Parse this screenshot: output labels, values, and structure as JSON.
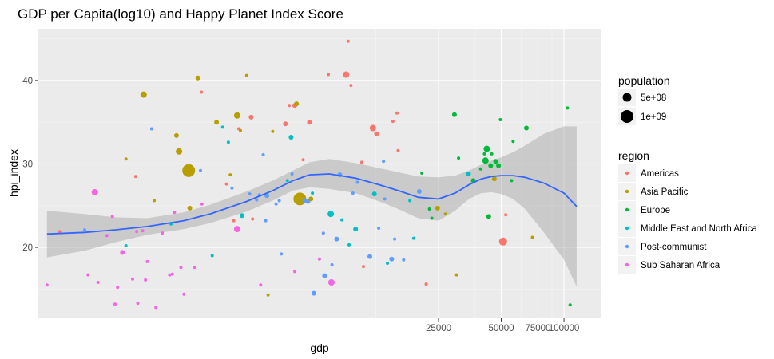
{
  "chart_data": {
    "type": "scatter",
    "title": "GDP per Capita(log10) and Happy Planet Index Score",
    "xlabel": "gdp",
    "ylabel": "hpi_index",
    "x_scale": "log10",
    "x_ticks": [
      25000,
      50000,
      75000,
      100000
    ],
    "x_tick_labels": [
      "25000",
      "50000",
      "75000",
      "100000"
    ],
    "xlim": [
      300,
      150000
    ],
    "y_ticks": [
      20,
      30,
      40
    ],
    "ylim": [
      11.5,
      46.2
    ],
    "grid": true,
    "size_legend": {
      "title": "population",
      "items": [
        {
          "label": "5e+08",
          "value": 500000000
        },
        {
          "label": "1e+09",
          "value": 1000000000
        }
      ]
    },
    "color_legend": {
      "title": "region",
      "items": [
        {
          "label": "Americas",
          "color": "#F8766D"
        },
        {
          "label": "Asia Pacific",
          "color": "#B79F00"
        },
        {
          "label": "Europe",
          "color": "#00BA38"
        },
        {
          "label": "Middle East and North Africa",
          "color": "#00BFC4"
        },
        {
          "label": "Post-communist",
          "color": "#619CFF"
        },
        {
          "label": "Sub Saharan Africa",
          "color": "#F564E3"
        }
      ]
    },
    "smooth": {
      "color": "#3366FF",
      "x": [
        330,
        500,
        700,
        1000,
        1500,
        2000,
        3000,
        4000,
        5000,
        6000,
        7500,
        10000,
        13000,
        16000,
        20000,
        25000,
        30000,
        35000,
        40000,
        45000,
        50000,
        57000,
        65000,
        80000,
        100000,
        115000
      ],
      "y": [
        21.6,
        21.8,
        22.1,
        22.5,
        23.2,
        24.0,
        25.5,
        26.8,
        28.0,
        28.7,
        28.8,
        28.3,
        27.5,
        26.8,
        26.0,
        25.8,
        26.5,
        27.5,
        28.2,
        28.5,
        28.6,
        28.6,
        28.4,
        27.7,
        26.5,
        24.9
      ],
      "lower": [
        18.8,
        19.6,
        20.6,
        21.5,
        22.2,
        22.9,
        24.3,
        25.6,
        26.8,
        27.2,
        27.0,
        26.5,
        25.5,
        24.6,
        23.5,
        23.2,
        24.4,
        25.8,
        26.5,
        26.6,
        26.4,
        25.8,
        24.6,
        21.8,
        18.5,
        15.3
      ],
      "upper": [
        24.4,
        24.0,
        23.6,
        23.5,
        24.2,
        25.1,
        26.7,
        28.0,
        29.2,
        30.2,
        30.6,
        30.1,
        29.5,
        29.0,
        28.5,
        28.4,
        28.6,
        29.2,
        29.9,
        30.4,
        30.8,
        31.4,
        32.2,
        33.6,
        34.5,
        34.5
      ]
    },
    "points": [
      {
        "x": 330,
        "y": 15.5,
        "r": 2,
        "c": "Sub Saharan Africa"
      },
      {
        "x": 380,
        "y": 21.9,
        "r": 2,
        "c": "Americas"
      },
      {
        "x": 500,
        "y": 22.1,
        "r": 2,
        "c": "Post-communist"
      },
      {
        "x": 520,
        "y": 16.7,
        "r": 2,
        "c": "Sub Saharan Africa"
      },
      {
        "x": 560,
        "y": 26.6,
        "r": 4,
        "c": "Sub Saharan Africa"
      },
      {
        "x": 580,
        "y": 15.8,
        "r": 2,
        "c": "Sub Saharan Africa"
      },
      {
        "x": 640,
        "y": 21.4,
        "r": 2,
        "c": "Sub Saharan Africa"
      },
      {
        "x": 680,
        "y": 23.7,
        "r": 2,
        "c": "Sub Saharan Africa"
      },
      {
        "x": 700,
        "y": 13.2,
        "r": 2,
        "c": "Sub Saharan Africa"
      },
      {
        "x": 720,
        "y": 15.2,
        "r": 2,
        "c": "Sub Saharan Africa"
      },
      {
        "x": 760,
        "y": 19.4,
        "r": 3,
        "c": "Sub Saharan Africa"
      },
      {
        "x": 790,
        "y": 30.6,
        "r": 2,
        "c": "Asia Pacific"
      },
      {
        "x": 790,
        "y": 20.2,
        "r": 2,
        "c": "Middle East and North Africa"
      },
      {
        "x": 850,
        "y": 16.2,
        "r": 2,
        "c": "Sub Saharan Africa"
      },
      {
        "x": 880,
        "y": 28.5,
        "r": 2,
        "c": "Americas"
      },
      {
        "x": 890,
        "y": 21.9,
        "r": 2,
        "c": "Sub Saharan Africa"
      },
      {
        "x": 900,
        "y": 13.3,
        "r": 2,
        "c": "Sub Saharan Africa"
      },
      {
        "x": 950,
        "y": 22.0,
        "r": 2,
        "c": "Sub Saharan Africa"
      },
      {
        "x": 960,
        "y": 38.3,
        "r": 4,
        "c": "Asia Pacific"
      },
      {
        "x": 980,
        "y": 16.1,
        "r": 2,
        "c": "Sub Saharan Africa"
      },
      {
        "x": 1000,
        "y": 18.3,
        "r": 2,
        "c": "Sub Saharan Africa"
      },
      {
        "x": 1050,
        "y": 34.2,
        "r": 2,
        "c": "Post-communist"
      },
      {
        "x": 1080,
        "y": 25.6,
        "r": 2,
        "c": "Asia Pacific"
      },
      {
        "x": 1100,
        "y": 12.8,
        "r": 2,
        "c": "Sub Saharan Africa"
      },
      {
        "x": 1180,
        "y": 21.7,
        "r": 2,
        "c": "Sub Saharan Africa"
      },
      {
        "x": 1280,
        "y": 16.7,
        "r": 2,
        "c": "Sub Saharan Africa"
      },
      {
        "x": 1300,
        "y": 22.8,
        "r": 2,
        "c": "Middle East and North Africa"
      },
      {
        "x": 1320,
        "y": 16.8,
        "r": 2,
        "c": "Sub Saharan Africa"
      },
      {
        "x": 1350,
        "y": 24.2,
        "r": 2,
        "c": "Sub Saharan Africa"
      },
      {
        "x": 1380,
        "y": 33.4,
        "r": 3,
        "c": "Asia Pacific"
      },
      {
        "x": 1420,
        "y": 31.5,
        "r": 4,
        "c": "Asia Pacific"
      },
      {
        "x": 1450,
        "y": 17.6,
        "r": 2,
        "c": "Sub Saharan Africa"
      },
      {
        "x": 1500,
        "y": 14.4,
        "r": 2,
        "c": "Sub Saharan Africa"
      },
      {
        "x": 1580,
        "y": 29.2,
        "r": 8,
        "c": "Asia Pacific"
      },
      {
        "x": 1600,
        "y": 24.7,
        "r": 3,
        "c": "Asia Pacific"
      },
      {
        "x": 1690,
        "y": 17.6,
        "r": 2,
        "c": "Sub Saharan Africa"
      },
      {
        "x": 1750,
        "y": 40.3,
        "r": 3,
        "c": "Asia Pacific"
      },
      {
        "x": 1800,
        "y": 29.2,
        "r": 2,
        "c": "Post-communist"
      },
      {
        "x": 1820,
        "y": 38.6,
        "r": 2,
        "c": "Americas"
      },
      {
        "x": 1830,
        "y": 25.2,
        "r": 2,
        "c": "Sub Saharan Africa"
      },
      {
        "x": 2050,
        "y": 19.0,
        "r": 2,
        "c": "Middle East and North Africa"
      },
      {
        "x": 2150,
        "y": 35.0,
        "r": 3,
        "c": "Asia Pacific"
      },
      {
        "x": 2300,
        "y": 34.4,
        "r": 2,
        "c": "Middle East and North Africa"
      },
      {
        "x": 2400,
        "y": 27.6,
        "r": 2,
        "c": "Americas"
      },
      {
        "x": 2450,
        "y": 32.6,
        "r": 2,
        "c": "Middle East and North Africa"
      },
      {
        "x": 2500,
        "y": 28.7,
        "r": 2,
        "c": "Asia Pacific"
      },
      {
        "x": 2550,
        "y": 27.1,
        "r": 2,
        "c": "Post-communist"
      },
      {
        "x": 2600,
        "y": 23.2,
        "r": 2,
        "c": "Americas"
      },
      {
        "x": 2700,
        "y": 35.8,
        "r": 4,
        "c": "Asia Pacific"
      },
      {
        "x": 2700,
        "y": 22.2,
        "r": 4,
        "c": "Sub Saharan Africa"
      },
      {
        "x": 2750,
        "y": 34.2,
        "r": 2,
        "c": "Americas"
      },
      {
        "x": 2800,
        "y": 34.0,
        "r": 2,
        "c": "Asia Pacific"
      },
      {
        "x": 2850,
        "y": 23.8,
        "r": 3,
        "c": "Middle East and North Africa"
      },
      {
        "x": 3000,
        "y": 40.6,
        "r": 2,
        "c": "Asia Pacific"
      },
      {
        "x": 3100,
        "y": 26.4,
        "r": 2,
        "c": "Post-communist"
      },
      {
        "x": 3150,
        "y": 35.6,
        "r": 3,
        "c": "Americas"
      },
      {
        "x": 3200,
        "y": 23.4,
        "r": 2,
        "c": "Americas"
      },
      {
        "x": 3350,
        "y": 25.7,
        "r": 2,
        "c": "Post-communist"
      },
      {
        "x": 3450,
        "y": 26.3,
        "r": 2,
        "c": "Post-communist"
      },
      {
        "x": 3500,
        "y": 15.5,
        "r": 2,
        "c": "Sub Saharan Africa"
      },
      {
        "x": 3600,
        "y": 31.1,
        "r": 2,
        "c": "Post-communist"
      },
      {
        "x": 3700,
        "y": 23.2,
        "r": 2,
        "c": "Post-communist"
      },
      {
        "x": 3750,
        "y": 26.2,
        "r": 3,
        "c": "Post-communist"
      },
      {
        "x": 3800,
        "y": 14.3,
        "r": 2,
        "c": "Asia Pacific"
      },
      {
        "x": 4000,
        "y": 33.9,
        "r": 2,
        "c": "Asia Pacific"
      },
      {
        "x": 4150,
        "y": 25.2,
        "r": 2,
        "c": "Post-communist"
      },
      {
        "x": 4300,
        "y": 25.6,
        "r": 2,
        "c": "Post-communist"
      },
      {
        "x": 4400,
        "y": 19.2,
        "r": 2,
        "c": "Post-communist"
      },
      {
        "x": 4600,
        "y": 34.8,
        "r": 3,
        "c": "Americas"
      },
      {
        "x": 4700,
        "y": 28.0,
        "r": 2,
        "c": "Middle East and North Africa"
      },
      {
        "x": 4800,
        "y": 37.0,
        "r": 2,
        "c": "Americas"
      },
      {
        "x": 4900,
        "y": 33.2,
        "r": 3,
        "c": "Middle East and North Africa"
      },
      {
        "x": 4950,
        "y": 28.8,
        "r": 2,
        "c": "Post-communist"
      },
      {
        "x": 5100,
        "y": 37.0,
        "r": 3,
        "c": "Americas"
      },
      {
        "x": 5100,
        "y": 17.1,
        "r": 2,
        "c": "Sub Saharan Africa"
      },
      {
        "x": 5200,
        "y": 37.2,
        "r": 3,
        "c": "Asia Pacific"
      },
      {
        "x": 5400,
        "y": 25.8,
        "r": 8,
        "c": "Asia Pacific"
      },
      {
        "x": 5600,
        "y": 30.5,
        "r": 2,
        "c": "Americas"
      },
      {
        "x": 5700,
        "y": 25.6,
        "r": 3,
        "c": "Post-communist"
      },
      {
        "x": 5900,
        "y": 25.5,
        "r": 3,
        "c": "Post-communist"
      },
      {
        "x": 6000,
        "y": 35.0,
        "r": 3,
        "c": "Americas"
      },
      {
        "x": 6100,
        "y": 25.8,
        "r": 3,
        "c": "Asia Pacific"
      },
      {
        "x": 6200,
        "y": 26.5,
        "r": 2,
        "c": "Middle East and North Africa"
      },
      {
        "x": 6300,
        "y": 14.5,
        "r": 3,
        "c": "Post-communist"
      },
      {
        "x": 6700,
        "y": 18.6,
        "r": 2,
        "c": "Sub Saharan Africa"
      },
      {
        "x": 7000,
        "y": 21.7,
        "r": 2,
        "c": "Post-communist"
      },
      {
        "x": 7100,
        "y": 16.6,
        "r": 3,
        "c": "Post-communist"
      },
      {
        "x": 7400,
        "y": 40.7,
        "r": 2,
        "c": "Americas"
      },
      {
        "x": 7600,
        "y": 24.0,
        "r": 4,
        "c": "Middle East and North Africa"
      },
      {
        "x": 7650,
        "y": 15.8,
        "r": 4,
        "c": "Sub Saharan Africa"
      },
      {
        "x": 7700,
        "y": 17.9,
        "r": 2,
        "c": "Post-communist"
      },
      {
        "x": 8100,
        "y": 21.0,
        "r": 3,
        "c": "Post-communist"
      },
      {
        "x": 8400,
        "y": 28.7,
        "r": 3,
        "c": "Post-communist"
      },
      {
        "x": 8600,
        "y": 23.3,
        "r": 2,
        "c": "Middle East and North Africa"
      },
      {
        "x": 9000,
        "y": 40.7,
        "r": 4,
        "c": "Americas"
      },
      {
        "x": 9200,
        "y": 44.7,
        "r": 2,
        "c": "Americas"
      },
      {
        "x": 9300,
        "y": 20.3,
        "r": 2,
        "c": "Middle East and North Africa"
      },
      {
        "x": 9500,
        "y": 39.4,
        "r": 2,
        "c": "Americas"
      },
      {
        "x": 9700,
        "y": 26.5,
        "r": 2,
        "c": "Post-communist"
      },
      {
        "x": 10000,
        "y": 22.2,
        "r": 3,
        "c": "Middle East and North Africa"
      },
      {
        "x": 10200,
        "y": 27.8,
        "r": 2,
        "c": "Post-communist"
      },
      {
        "x": 10700,
        "y": 30.2,
        "r": 2,
        "c": "Americas"
      },
      {
        "x": 10900,
        "y": 17.7,
        "r": 2,
        "c": "Americas"
      },
      {
        "x": 11700,
        "y": 18.9,
        "r": 3,
        "c": "Post-communist"
      },
      {
        "x": 12100,
        "y": 34.3,
        "r": 4,
        "c": "Americas"
      },
      {
        "x": 12300,
        "y": 26.4,
        "r": 3,
        "c": "Middle East and North Africa"
      },
      {
        "x": 12600,
        "y": 33.6,
        "r": 3,
        "c": "Americas"
      },
      {
        "x": 12900,
        "y": 22.3,
        "r": 2,
        "c": "Post-communist"
      },
      {
        "x": 13600,
        "y": 30.3,
        "r": 2,
        "c": "Post-communist"
      },
      {
        "x": 13800,
        "y": 25.8,
        "r": 2,
        "c": "Post-communist"
      },
      {
        "x": 14200,
        "y": 18.1,
        "r": 2,
        "c": "Middle East and North Africa"
      },
      {
        "x": 14900,
        "y": 18.6,
        "r": 3,
        "c": "Post-communist"
      },
      {
        "x": 15100,
        "y": 35.1,
        "r": 2,
        "c": "Americas"
      },
      {
        "x": 15400,
        "y": 21.0,
        "r": 2,
        "c": "Post-communist"
      },
      {
        "x": 15800,
        "y": 36.1,
        "r": 2,
        "c": "Americas"
      },
      {
        "x": 16000,
        "y": 31.6,
        "r": 2,
        "c": "Americas"
      },
      {
        "x": 17000,
        "y": 18.5,
        "r": 2,
        "c": "Post-communist"
      },
      {
        "x": 18200,
        "y": 25.6,
        "r": 2,
        "c": "Middle East and North Africa"
      },
      {
        "x": 19000,
        "y": 21.1,
        "r": 2,
        "c": "Middle East and North Africa"
      },
      {
        "x": 20200,
        "y": 26.7,
        "r": 3,
        "c": "Post-communist"
      },
      {
        "x": 20800,
        "y": 28.9,
        "r": 2,
        "c": "Europe"
      },
      {
        "x": 21800,
        "y": 15.6,
        "r": 2,
        "c": "Americas"
      },
      {
        "x": 22600,
        "y": 24.6,
        "r": 2,
        "c": "Europe"
      },
      {
        "x": 23200,
        "y": 23.5,
        "r": 2,
        "c": "Europe"
      },
      {
        "x": 24700,
        "y": 24.7,
        "r": 3,
        "c": "Asia Pacific"
      },
      {
        "x": 27000,
        "y": 24.0,
        "r": 2,
        "c": "Asia Pacific"
      },
      {
        "x": 29800,
        "y": 35.9,
        "r": 3,
        "c": "Europe"
      },
      {
        "x": 30500,
        "y": 16.7,
        "r": 2,
        "c": "Asia Pacific"
      },
      {
        "x": 31200,
        "y": 30.7,
        "r": 2,
        "c": "Europe"
      },
      {
        "x": 34800,
        "y": 28.8,
        "r": 3,
        "c": "Middle East and North Africa"
      },
      {
        "x": 36700,
        "y": 28.0,
        "r": 3,
        "c": "Europe"
      },
      {
        "x": 39800,
        "y": 29.4,
        "r": 2,
        "c": "Europe"
      },
      {
        "x": 41500,
        "y": 31.2,
        "r": 2,
        "c": "Europe"
      },
      {
        "x": 42000,
        "y": 30.4,
        "r": 4,
        "c": "Europe"
      },
      {
        "x": 42600,
        "y": 31.8,
        "r": 4,
        "c": "Europe"
      },
      {
        "x": 43500,
        "y": 23.7,
        "r": 3,
        "c": "Europe"
      },
      {
        "x": 44500,
        "y": 29.8,
        "r": 3,
        "c": "Europe"
      },
      {
        "x": 45000,
        "y": 31.2,
        "r": 2,
        "c": "Europe"
      },
      {
        "x": 46300,
        "y": 28.2,
        "r": 3,
        "c": "Asia Pacific"
      },
      {
        "x": 47000,
        "y": 30.3,
        "r": 3,
        "c": "Europe"
      },
      {
        "x": 48500,
        "y": 29.8,
        "r": 3,
        "c": "Europe"
      },
      {
        "x": 49500,
        "y": 35.3,
        "r": 2,
        "c": "Europe"
      },
      {
        "x": 51000,
        "y": 20.7,
        "r": 5,
        "c": "Americas"
      },
      {
        "x": 52500,
        "y": 23.9,
        "r": 2,
        "c": "Americas"
      },
      {
        "x": 56000,
        "y": 28.0,
        "r": 2,
        "c": "Europe"
      },
      {
        "x": 57000,
        "y": 32.7,
        "r": 2,
        "c": "Europe"
      },
      {
        "x": 66000,
        "y": 34.3,
        "r": 3,
        "c": "Europe"
      },
      {
        "x": 70500,
        "y": 21.2,
        "r": 2,
        "c": "Asia Pacific"
      },
      {
        "x": 104000,
        "y": 36.7,
        "r": 2,
        "c": "Europe"
      },
      {
        "x": 107000,
        "y": 13.1,
        "r": 2,
        "c": "Europe"
      }
    ]
  }
}
